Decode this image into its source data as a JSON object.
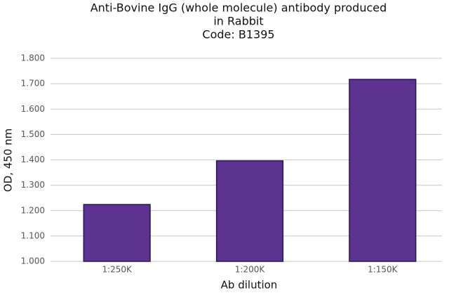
{
  "chart_data": {
    "type": "bar",
    "title": [
      "Anti-Bovine IgG (whole molecule) antibody produced",
      "in Rabbit",
      "Code: B1395"
    ],
    "x_label": "Ab dilution",
    "y_label": "OD, 450 nm",
    "categories": [
      "1:250K",
      "1:200K",
      "1:150K"
    ],
    "values": [
      1.224,
      1.396,
      1.717
    ],
    "color": "#5c3391",
    "ylim": [
      1.0,
      1.8
    ],
    "yticks": [
      {
        "value": 1.0,
        "label": "1.000"
      },
      {
        "value": 1.1,
        "label": "1.100"
      },
      {
        "value": 1.2,
        "label": "1.200"
      },
      {
        "value": 1.3,
        "label": "1.300"
      },
      {
        "value": 1.4,
        "label": "1.400"
      },
      {
        "value": 1.5,
        "label": "1.500"
      },
      {
        "value": 1.6,
        "label": "1.600"
      },
      {
        "value": 1.7,
        "label": "1.700"
      },
      {
        "value": 1.8,
        "label": "1.800"
      }
    ],
    "grid": true
  }
}
